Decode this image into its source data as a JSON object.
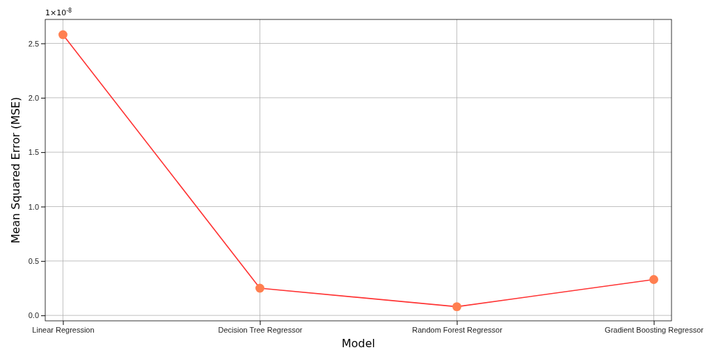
{
  "chart_data": {
    "type": "line",
    "xlabel": "Model",
    "ylabel": "Mean Squared Error (MSE)",
    "categories": [
      "Linear Regression",
      "Decision Tree Regressor",
      "Random Forest Regressor",
      "Gradient Boosting Regressor"
    ],
    "series": [
      {
        "color": "#ff3333",
        "colors": [
          "#ff7f50",
          "#ff7f50",
          "#ff7f50",
          "#ff7f50"
        ],
        "values": [
          2.58,
          0.25,
          0.08,
          0.33
        ]
      }
    ],
    "ylim": [
      -0.05,
      2.72
    ],
    "yticks": [
      {
        "value": 0,
        "label": "0.0"
      },
      0.5,
      {
        "value": 1,
        "label": "1.0"
      },
      1.5,
      {
        "value": 2,
        "label": "2.0"
      },
      2.5
    ],
    "annotations": [
      "1×10$^{-8}$"
    ],
    "grid": true,
    "marker": "circle",
    "line_style": "solid"
  }
}
